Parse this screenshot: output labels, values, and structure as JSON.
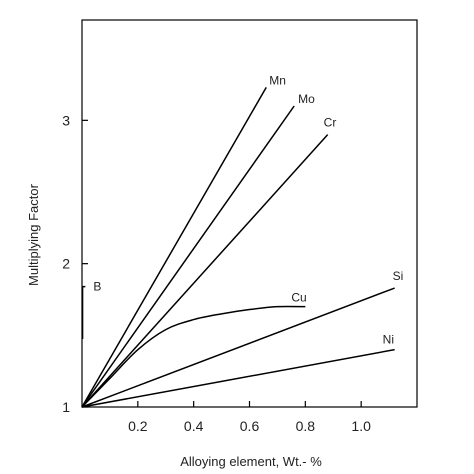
{
  "chart_data": {
    "type": "line",
    "title": "",
    "xlabel": "Alloying element, Wt.- %",
    "ylabel": "Multiplying Factor",
    "xlim": [
      0,
      1.2
    ],
    "ylim": [
      1,
      3.7
    ],
    "xticks": [
      0.2,
      0.4,
      0.6,
      0.8,
      1.0
    ],
    "xtick_labels": [
      "0.2",
      "0.4",
      "0.6",
      "0.8",
      "1.0"
    ],
    "yticks": [
      1,
      2,
      3
    ],
    "ytick_labels": [
      "1",
      "2",
      "3"
    ],
    "grid": false,
    "colors": {
      "line": "#000000",
      "text": "#222222"
    },
    "series": [
      {
        "name": "Mn",
        "x": [
          0,
          0.66
        ],
        "y": [
          1,
          3.23
        ]
      },
      {
        "name": "Mo",
        "x": [
          0,
          0.76
        ],
        "y": [
          1,
          3.1
        ]
      },
      {
        "name": "Cr",
        "x": [
          0,
          0.88
        ],
        "y": [
          1,
          2.9
        ]
      },
      {
        "name": "Cu",
        "x": [
          0,
          0.1,
          0.2,
          0.3,
          0.4,
          0.5,
          0.6,
          0.7,
          0.8
        ],
        "y": [
          1,
          1.2,
          1.4,
          1.54,
          1.61,
          1.65,
          1.68,
          1.7,
          1.7
        ]
      },
      {
        "name": "Si",
        "x": [
          0,
          1.12
        ],
        "y": [
          1,
          1.83
        ]
      },
      {
        "name": "Ni",
        "x": [
          0,
          1.12
        ],
        "y": [
          1,
          1.4
        ]
      },
      {
        "name": "B",
        "x": [
          0,
          0.002,
          0.002,
          0.012
        ],
        "y": [
          1.48,
          1.48,
          1.84,
          1.84
        ]
      }
    ]
  }
}
